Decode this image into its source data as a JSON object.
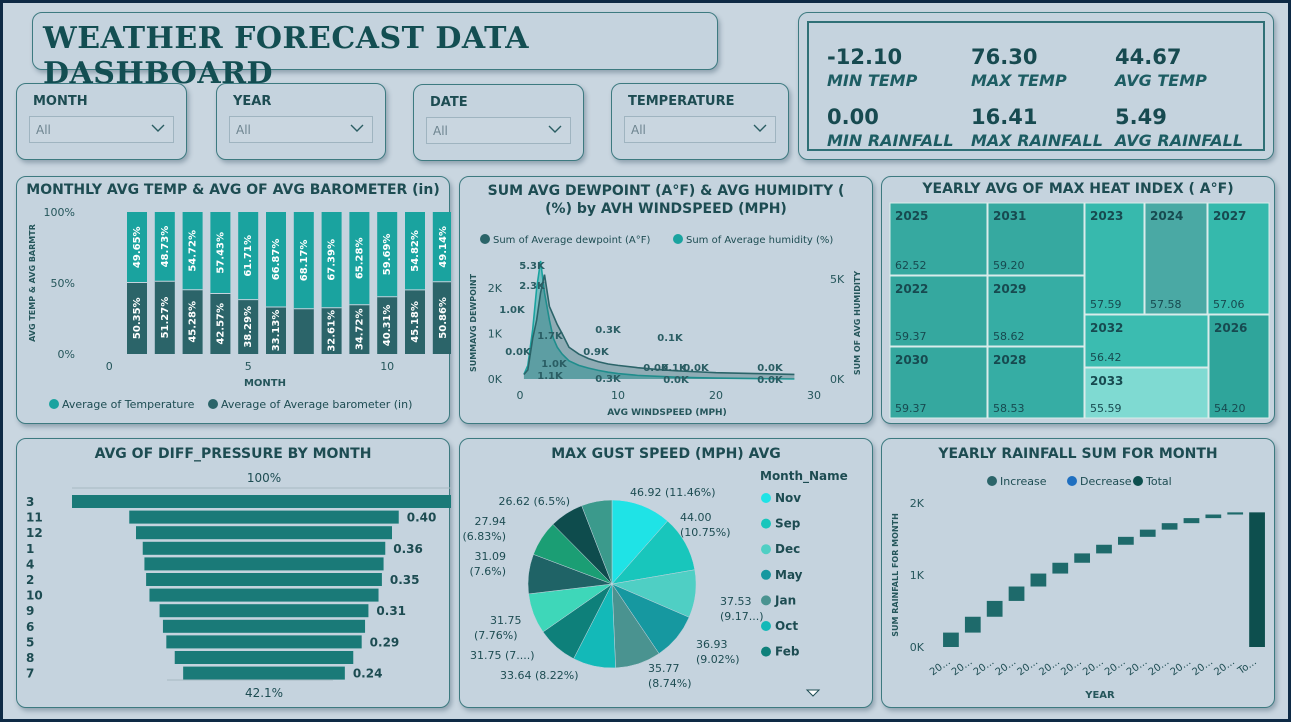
{
  "dashboard": {
    "title": "WEATHER FORECAST DATA DASHBOARD"
  },
  "slicers": [
    {
      "label": "MONTH",
      "value": "All"
    },
    {
      "label": "YEAR",
      "value": "All"
    },
    {
      "label": "DATE",
      "value": "All"
    },
    {
      "label": "TEMPERATURE",
      "value": "All"
    }
  ],
  "kpis": [
    {
      "value": "-12.10",
      "label": "MIN TEMP"
    },
    {
      "value": "76.30",
      "label": "MAX TEMP"
    },
    {
      "value": "44.67",
      "label": "AVG TEMP"
    },
    {
      "value": "0.00",
      "label": "MIN RAINFALL"
    },
    {
      "value": "16.41",
      "label": "MAX RAINFALL"
    },
    {
      "value": "5.49",
      "label": "AVG RAINFALL"
    }
  ],
  "colors": {
    "dark_teal": "#2b6469",
    "teal": "#1aa7a4",
    "bright_cyan": "#1fe3e6",
    "frame": "#0e2a45"
  },
  "chart_data": [
    {
      "id": "monthly",
      "type": "bar",
      "stacked": "100%",
      "title": "MONTHLY AVG TEMP & AVG OF AVG BAROMETER (in)",
      "xlabel": "MONTH",
      "ylabel": "AVG TEMP & AVG BARMTR",
      "yticks": [
        "0%",
        "50%",
        "100%"
      ],
      "xticks": [
        "0",
        "5",
        "10"
      ],
      "categories": [
        1,
        2,
        3,
        4,
        5,
        6,
        7,
        8,
        9,
        10,
        11,
        12
      ],
      "series": [
        {
          "name": "Average of  Temperature",
          "values": [
            49.65,
            48.73,
            54.72,
            57.43,
            61.71,
            66.87,
            68.17,
            67.39,
            65.28,
            59.69,
            54.82,
            49.14
          ],
          "labels": [
            "49.65%",
            "48.73%",
            "54.72%",
            "57.43%",
            "61.71%",
            "66.87%",
            "68.17%",
            "67.39%",
            "65.28%",
            "59.69%",
            "54.82%",
            "49.14%"
          ]
        },
        {
          "name": "Average of  Average barometer (in)",
          "values": [
            50.35,
            51.27,
            45.28,
            42.57,
            38.29,
            33.13,
            31.83,
            32.61,
            34.72,
            40.31,
            45.18,
            50.86
          ],
          "labels": [
            "50.35%",
            "51.27%",
            "45.28%",
            "42.57%",
            "38.29%",
            "33.13%",
            "",
            "32.61%",
            "34.72%",
            "40.31%",
            "45.18%",
            "50.86%"
          ]
        }
      ]
    },
    {
      "id": "dewpoint",
      "type": "area",
      "title": "SUM AVG DEWPOINT (A°F) & AVG HUMIDITY ( (%) by AVH WINDSPEED (MPH)",
      "xlabel": "AVG WINDSPEED (MPH)",
      "ylabel": "SUMMAVG DEWPOINT",
      "ylabel2": "SUM OF AVG HUMIDITY",
      "xticks": [
        "0",
        "10",
        "20",
        "30"
      ],
      "yticks": [
        "0K",
        "1K",
        "2K"
      ],
      "yticks2": [
        "0K",
        "5K"
      ],
      "xlim": [
        0,
        30
      ],
      "ylim": [
        0,
        2.6
      ],
      "series": [
        {
          "name": "Sum of  Average dewpoint (A°F)",
          "x": [
            0.4,
            0.8,
            1.3,
            1.7,
            2.1,
            2.5,
            3.0,
            3.4,
            3.8,
            4.3,
            5,
            6,
            7,
            8,
            9,
            10,
            12,
            14,
            16,
            18,
            20,
            24,
            28
          ],
          "y": [
            0.1,
            0.2,
            0.9,
            1.3,
            1.9,
            2.3,
            1.6,
            1.4,
            1.2,
            1.0,
            0.7,
            0.55,
            0.45,
            0.38,
            0.33,
            0.3,
            0.25,
            0.21,
            0.18,
            0.16,
            0.14,
            0.12,
            0.1
          ]
        },
        {
          "name": "Sum of  Average humidity (%)",
          "x": [
            0.4,
            0.8,
            1.3,
            1.7,
            2.1,
            2.5,
            3.0,
            3.4,
            3.8,
            4.3,
            5,
            6,
            7,
            8,
            9,
            10,
            12,
            14,
            16,
            18,
            20,
            24,
            28
          ],
          "y": [
            0.1,
            0.3,
            1.1,
            2.0,
            2.6,
            1.9,
            1.3,
            0.9,
            0.7,
            0.55,
            0.4,
            0.3,
            0.24,
            0.19,
            0.15,
            0.12,
            0.08,
            0.06,
            0.04,
            0.03,
            0.02,
            0.01,
            0.0
          ]
        }
      ],
      "data_labels": [
        "5.3K",
        "2.3K",
        "1.0K",
        "1.7K",
        "0.3K",
        "0.1K",
        "0.0K",
        "0.9K",
        "1.0K",
        "0.1K",
        "1.1K",
        "0.3K",
        "0.0K",
        "0.0K",
        "0.0K",
        "0.0K",
        "0.0K"
      ]
    },
    {
      "id": "heatindex",
      "type": "treemap",
      "title": "YEARLY AVG OF MAX HEAT INDEX ( A°F)",
      "items": [
        {
          "year": "2025",
          "value": "62.52"
        },
        {
          "year": "2031",
          "value": "59.20"
        },
        {
          "year": "2023",
          "value": "57.59"
        },
        {
          "year": "2024",
          "value": "57.58"
        },
        {
          "year": "2027",
          "value": "57.06"
        },
        {
          "year": "2022",
          "value": "59.37"
        },
        {
          "year": "2029",
          "value": "58.62"
        },
        {
          "year": "2032",
          "value": "56.42"
        },
        {
          "year": "2026",
          "value": "54.20"
        },
        {
          "year": "2030",
          "value": "59.37"
        },
        {
          "year": "2028",
          "value": "58.53"
        },
        {
          "year": "2033",
          "value": "55.59"
        }
      ]
    },
    {
      "id": "pressure",
      "type": "bar",
      "orientation": "funnel",
      "title": "AVG OF DIFF_PRESSURE BY MONTH",
      "top_label": "100%",
      "bottom_label": "42.1%",
      "categories": [
        "3",
        "11",
        "12",
        "1",
        "4",
        "2",
        "10",
        "9",
        "6",
        "5",
        "8",
        "7"
      ],
      "values": [
        0.57,
        0.4,
        0.38,
        0.36,
        0.355,
        0.35,
        0.34,
        0.31,
        0.3,
        0.29,
        0.265,
        0.24
      ],
      "labels": [
        "",
        "0.40",
        "",
        "0.36",
        "",
        "0.35",
        "",
        "0.31",
        "",
        "0.29",
        "",
        "0.24"
      ]
    },
    {
      "id": "gust",
      "type": "pie",
      "title": "MAX GUST SPEED (MPH) AVG",
      "legend_title": "Month_Name",
      "legend": [
        "Nov",
        "Sep",
        "Dec",
        "May",
        "Jan",
        "Oct",
        "Feb"
      ],
      "slices": [
        {
          "value": 46.92,
          "pct": 11.46,
          "color": "#1fe3e6"
        },
        {
          "value": 44.0,
          "pct": 10.75,
          "color": "#18c6bc"
        },
        {
          "value": 37.53,
          "pct": 9.17,
          "color": "#4fcfc4"
        },
        {
          "value": 36.93,
          "pct": 9.02,
          "color": "#1698a0"
        },
        {
          "value": 35.77,
          "pct": 8.74,
          "color": "#4a9390"
        },
        {
          "value": 33.64,
          "pct": 8.22,
          "color": "#13b9b8"
        },
        {
          "value": 31.75,
          "pct": 7.76,
          "color": "#0e807a"
        },
        {
          "value": 31.75,
          "pct": 7.76,
          "color": "#3ed7b9"
        },
        {
          "value": 31.09,
          "pct": 7.6,
          "color": "#1f6366"
        },
        {
          "value": 27.94,
          "pct": 6.83,
          "color": "#1b9e74"
        },
        {
          "value": 26.62,
          "pct": 6.5,
          "color": "#0e4c4d"
        },
        {
          "value": 24.0,
          "pct": 5.9,
          "color": "#3b9a8c"
        }
      ],
      "labels": [
        "46.92 (11.46%)",
        "44.00",
        "(10.75%)",
        "37.53",
        "(9.17...)",
        "36.93",
        "(9.02%)",
        "35.77",
        "(8.74%)",
        "33.64 (8.22%)",
        "31.75 (7....)",
        "31.75",
        "(7.76%)",
        "31.09",
        "(7.6%)",
        "27.94",
        "(6.83%)",
        "26.62 (6.5%)"
      ]
    },
    {
      "id": "rainfall",
      "type": "bar",
      "orientation": "waterfall",
      "title": "YEARLY RAINFALL SUM FOR MONTH",
      "xlabel": "YEAR",
      "ylabel": "SUM RAINFALL FOR MONTH",
      "yticks": [
        "0K",
        "1K",
        "2K"
      ],
      "ylim": [
        0,
        2000
      ],
      "legend": [
        "Increase",
        "Decrease",
        "Total"
      ],
      "categories": [
        "20...",
        "20...",
        "20...",
        "20...",
        "20...",
        "20...",
        "20...",
        "20...",
        "20...",
        "20...",
        "20...",
        "20...",
        "20...",
        "20...",
        "To..."
      ],
      "steps": [
        {
          "from": 0,
          "to": 200
        },
        {
          "from": 200,
          "to": 420
        },
        {
          "from": 420,
          "to": 640
        },
        {
          "from": 640,
          "to": 840
        },
        {
          "from": 840,
          "to": 1020
        },
        {
          "from": 1020,
          "to": 1170
        },
        {
          "from": 1170,
          "to": 1300
        },
        {
          "from": 1300,
          "to": 1420
        },
        {
          "from": 1420,
          "to": 1530
        },
        {
          "from": 1530,
          "to": 1630
        },
        {
          "from": 1630,
          "to": 1720
        },
        {
          "from": 1720,
          "to": 1790
        },
        {
          "from": 1790,
          "to": 1840
        },
        {
          "from": 1840,
          "to": 1870
        }
      ],
      "total": 1870
    }
  ]
}
